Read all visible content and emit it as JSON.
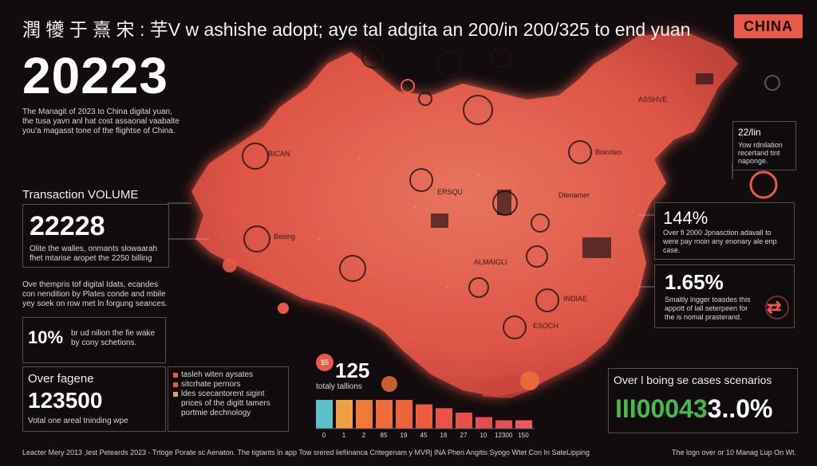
{
  "header": {
    "title": "潤 犪 于 熹 宋 : 芋V w ashishe adopt; aye tal adgita an 200/in 200/325 to end yuan",
    "badge": "CHINA",
    "big_number": "20223"
  },
  "intro_lines": [
    "The Managit of 2023 to China digital yuan,",
    "the tusa yavn anl hat cost assaonal vaabalte",
    "you'a magasst tone of the flightse of China."
  ],
  "transaction": {
    "label": "Transaction VOLUME",
    "value": "22228",
    "lines": [
      "Olite the walles, onmants slowaarah",
      "fhet mtarise aropet the 2250 billing"
    ]
  },
  "overview_lines": [
    "Ove thempris tof digital Idats, ecandes",
    "con nendition by Plates conde and mbile",
    "yey soek on row met ln forgung seances."
  ],
  "stat_10": {
    "value": "10%",
    "lines": [
      "br ud nilion the fie wake",
      "by cony schetions."
    ]
  },
  "over_fagene": {
    "label": "Over fagene",
    "value": "123500",
    "sub": "Votal one areal tninding wpe"
  },
  "legend_items": [
    {
      "text": "tasleh witen aysates",
      "color": "#e8594b"
    },
    {
      "text": "sitcrhate pernors",
      "color": "#e8594b"
    },
    {
      "text": "ldes scecantorent sigint",
      "color": "#f0a040"
    },
    {
      "text": "prices of the digitt tamers",
      "color": ""
    },
    {
      "text": "portmie dechnology",
      "color": ""
    }
  ],
  "chart": {
    "icon_text": "$5",
    "value": "125",
    "sub": "totaly tallions",
    "bars": [
      {
        "value": 45,
        "color": "#5bc0c8",
        "label": "0"
      },
      {
        "value": 45,
        "color": "#f0a040",
        "label": "1"
      },
      {
        "value": 45,
        "color": "#f07a3a",
        "label": "2"
      },
      {
        "value": 45,
        "color": "#ef6b3a",
        "label": "85"
      },
      {
        "value": 45,
        "color": "#ee623c",
        "label": "19"
      },
      {
        "value": 38,
        "color": "#ec5a40",
        "label": "45"
      },
      {
        "value": 32,
        "color": "#ea5446",
        "label": "16"
      },
      {
        "value": 25,
        "color": "#e8504c",
        "label": "27"
      },
      {
        "value": 18,
        "color": "#e64c52",
        "label": "10"
      },
      {
        "value": 13,
        "color": "#e84d5a",
        "label": "12300"
      },
      {
        "value": 13,
        "color": "#ea5a64",
        "label": "150"
      }
    ]
  },
  "right_top": {
    "value": "22/lin",
    "lines": [
      "Yow rdnilation",
      "recertand tint",
      "naponge."
    ]
  },
  "right_144": {
    "value": "144%",
    "lines": [
      "Over fi 2000 Jpnasction adavall to",
      "were pay moin any enonary ale enp",
      "case."
    ]
  },
  "right_165": {
    "value": "1.65%",
    "lines": [
      "Smaitly lngger toasdes this",
      "appott of lall seterpeen for",
      "the is nomal prasterand."
    ]
  },
  "right_bottom": {
    "label": "Over l boing se cases scenarios",
    "value_green": "III00043",
    "value_white": "3..0%"
  },
  "map_labels": [
    "BICAN",
    "Beiiing",
    "Boindeo",
    "ASSHVE",
    "Dienamer",
    "ERSQU",
    "ALMAIGLI",
    "INDIAE",
    "ESOCH"
  ],
  "footer": {
    "left": "Leacter Mery 2013 ,lest Peteards 2023 - Trtoge Porate sc Aenaton. The tigtants In app Tow srered liefiinanca Critegenam y MVRj INA Phen Angitis Syogo Wtet Con In SateLipping",
    "right": "The logn over or 10 Manag Lup On Wt."
  }
}
